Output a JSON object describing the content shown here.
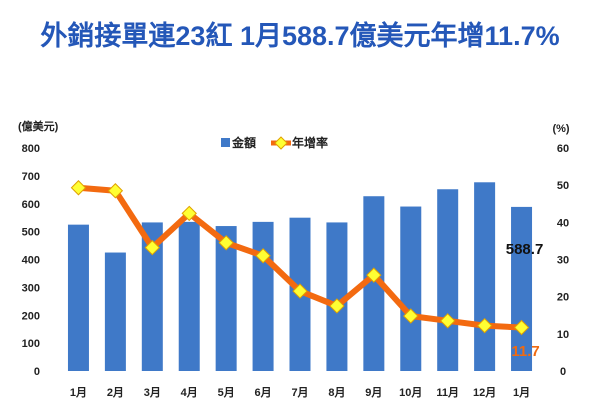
{
  "chart_data": {
    "type": "bar+line",
    "title": "外銷接單連23紅 1月588.7億美元年增11.7%",
    "categories": [
      "1月",
      "2月",
      "3月",
      "4月",
      "5月",
      "6月",
      "7月",
      "8月",
      "9月",
      "10月",
      "11月",
      "12月",
      "1月"
    ],
    "series": [
      {
        "name": "金額",
        "type": "bar",
        "axis": "left",
        "color": "#3f79c8",
        "values": [
          525,
          425,
          533,
          535,
          520,
          535,
          550,
          533,
          627,
          590,
          652,
          677,
          588.7
        ]
      },
      {
        "name": "年增率",
        "type": "line",
        "axis": "right",
        "color": "#f36a10",
        "marker_color": "#ffff33",
        "values": [
          49.3,
          48.5,
          33.2,
          42.4,
          34.5,
          31.0,
          21.5,
          17.5,
          25.8,
          14.8,
          13.5,
          12.2,
          11.7
        ]
      }
    ],
    "y_left": {
      "label": "(億美元)",
      "ticks": [
        "0",
        "100",
        "200",
        "300",
        "400",
        "500",
        "600",
        "700",
        "800"
      ],
      "ylim": [
        0,
        800
      ]
    },
    "y_right": {
      "label": "(%)",
      "ticks": [
        "0",
        "10",
        "20",
        "30",
        "40",
        "50",
        "60"
      ],
      "ylim": [
        0,
        60
      ]
    },
    "annotations": {
      "bar_last": "588.7",
      "line_last": "11.7"
    },
    "legend_position": "top-center",
    "grid": false
  }
}
